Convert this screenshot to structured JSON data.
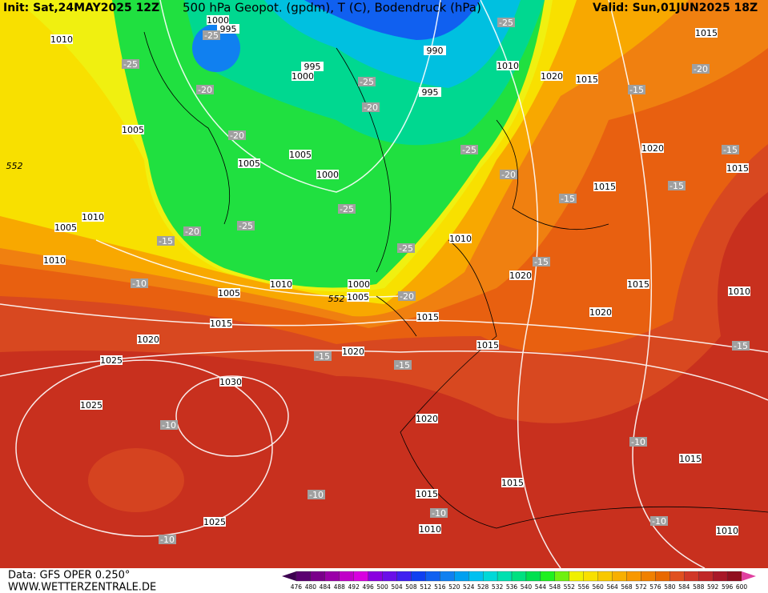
{
  "header": {
    "init": "Init: Sat,24MAY2025 12Z",
    "title": "500 hPa Geopot. (gpdm), T (C), Bodendruck (hPa)",
    "valid": "Valid: Sun,01JUN2025 18Z"
  },
  "isobars": [
    1010,
    1000,
    995,
    990,
    995,
    1000,
    995,
    1010,
    1020,
    1015,
    1015,
    1005,
    1005,
    1005,
    1000,
    1020,
    1015,
    1015,
    1010,
    1005,
    1010,
    1010,
    1020,
    1015,
    1010,
    1000,
    1005,
    1005,
    1010,
    1020,
    1015,
    1015,
    1020,
    1015,
    1020,
    1025,
    1030,
    1025,
    1020,
    1015,
    1015,
    1015,
    1010,
    1025,
    1010
  ],
  "temperatures": [
    -25,
    -25,
    -25,
    -20,
    -25,
    -20,
    -15,
    -20,
    -20,
    -25,
    -15,
    -20,
    -15,
    -15,
    -25,
    -25,
    -20,
    -15,
    -25,
    -15,
    -10,
    -20,
    -15,
    -15,
    -15,
    -10,
    -10,
    -10,
    -10,
    -10,
    -10
  ],
  "height_labels": [
    552,
    552
  ],
  "legend": {
    "labels": [
      476,
      480,
      484,
      488,
      492,
      496,
      500,
      504,
      508,
      512,
      516,
      520,
      524,
      528,
      532,
      536,
      540,
      544,
      548,
      552,
      556,
      560,
      564,
      568,
      572,
      576,
      580,
      584,
      588,
      592,
      596,
      600
    ],
    "colors": [
      "#3c0050",
      "#5a0070",
      "#7a008a",
      "#9a00a8",
      "#c000c8",
      "#d800e0",
      "#8a00e0",
      "#6a10e8",
      "#4020f0",
      "#1040f0",
      "#1060f0",
      "#1080f0",
      "#00a0f0",
      "#00c0f0",
      "#00d8d8",
      "#00e0b0",
      "#00e080",
      "#00e050",
      "#20f020",
      "#70f010",
      "#f0f000",
      "#f8e000",
      "#f8c800",
      "#f8b000",
      "#f89800",
      "#f08000",
      "#e86800",
      "#e05020",
      "#d03828",
      "#c02828",
      "#a81828",
      "#901020",
      "#e040a0"
    ]
  },
  "footer": {
    "data": "Data: GFS OPER 0.250°",
    "site": "WWW.WETTERZENTRALE.DE"
  }
}
